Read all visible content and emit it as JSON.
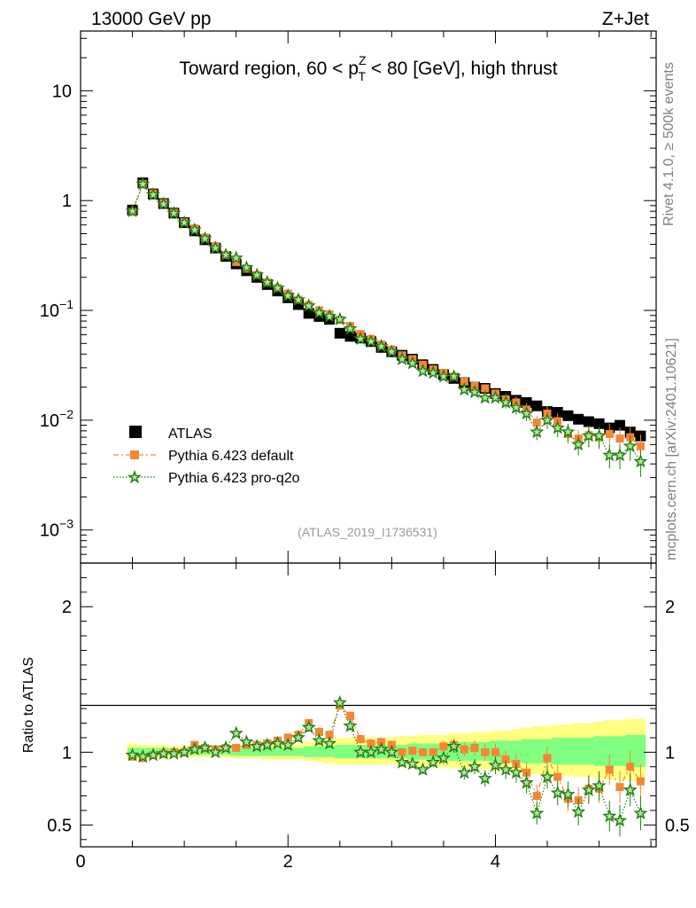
{
  "header": {
    "energy": "13000 GeV pp",
    "process": "Z+Jet"
  },
  "side": {
    "rivet": "Rivet 4.1.0, ≥ 500k events",
    "site": "mcplots.cern.ch [arXiv:2401.10621]"
  },
  "colors": {
    "atlas": "#000000",
    "default": "#f58634",
    "proq2o": "#1e7d12",
    "band_yellow": "#ffff80",
    "band_green": "#80ff80"
  },
  "chart_data": [
    {
      "type": "scatter",
      "title": "Toward region, 60 < p_T^Z < 80 [GeV], high thrust",
      "title_parts": {
        "pre": "Toward region, 60 < p",
        "sup": "Z",
        "sub": "T",
        "post": " < 80 [GeV], high thrust"
      },
      "analysis": "(ATLAS_2019_I1736531)",
      "yscale": "log",
      "ylim": [
        0.0005,
        35
      ],
      "xlim": [
        0,
        5.55
      ],
      "ytick_labels": [
        {
          "value": 10,
          "base": "10",
          "exp": ""
        },
        {
          "value": 1,
          "base": "1",
          "exp": ""
        },
        {
          "value": 0.1,
          "base": "10",
          "exp": "−1"
        },
        {
          "value": 0.01,
          "base": "10",
          "exp": "−2"
        },
        {
          "value": 0.001,
          "base": "10",
          "exp": "−3"
        }
      ],
      "legend": [
        "ATLAS",
        "Pythia 6.423 default",
        "Pythia 6.423 pro-q2o"
      ],
      "x": [
        0.5,
        0.6,
        0.7,
        0.8,
        0.9,
        1.0,
        1.1,
        1.2,
        1.3,
        1.4,
        1.5,
        1.6,
        1.7,
        1.8,
        1.9,
        2.0,
        2.1,
        2.2,
        2.3,
        2.4,
        2.5,
        2.6,
        2.7,
        2.8,
        2.9,
        3.0,
        3.1,
        3.2,
        3.3,
        3.4,
        3.5,
        3.6,
        3.7,
        3.8,
        3.9,
        4.0,
        4.1,
        4.2,
        4.3,
        4.4,
        4.5,
        4.6,
        4.7,
        4.8,
        4.9,
        5.0,
        5.1,
        5.2,
        5.3,
        5.4
      ],
      "series": [
        {
          "name": "ATLAS",
          "values": [
            0.82,
            1.45,
            1.15,
            0.94,
            0.77,
            0.63,
            0.53,
            0.44,
            0.37,
            0.31,
            0.265,
            0.23,
            0.2,
            0.172,
            0.15,
            0.13,
            0.113,
            0.094,
            0.088,
            0.083,
            0.062,
            0.058,
            0.056,
            0.052,
            0.046,
            0.042,
            0.039,
            0.036,
            0.032,
            0.029,
            0.026,
            0.024,
            0.022,
            0.02,
            0.0195,
            0.0175,
            0.0165,
            0.0152,
            0.0145,
            0.0135,
            0.012,
            0.0118,
            0.011,
            0.0102,
            0.0097,
            0.0093,
            0.0085,
            0.009,
            0.0078,
            0.0072
          ]
        },
        {
          "name": "Pythia 6.423 default",
          "values": [
            0.79,
            1.42,
            1.16,
            0.95,
            0.775,
            0.635,
            0.56,
            0.46,
            0.385,
            0.32,
            0.275,
            0.24,
            0.21,
            0.18,
            0.16,
            0.142,
            0.125,
            0.112,
            0.1,
            0.092,
            0.082,
            0.072,
            0.061,
            0.055,
            0.049,
            0.044,
            0.039,
            0.036,
            0.032,
            0.029,
            0.027,
            0.025,
            0.0225,
            0.0205,
            0.0195,
            0.0175,
            0.0155,
            0.0145,
            0.0125,
            0.0095,
            0.0115,
            0.0098,
            0.0075,
            0.0068,
            0.0073,
            0.007,
            0.0075,
            0.0068,
            0.007,
            0.0058
          ]
        },
        {
          "name": "Pythia 6.423 pro-q2o",
          "values": [
            0.8,
            1.41,
            1.13,
            0.93,
            0.765,
            0.63,
            0.54,
            0.45,
            0.37,
            0.32,
            0.3,
            0.245,
            0.21,
            0.18,
            0.16,
            0.136,
            0.125,
            0.11,
            0.095,
            0.088,
            0.083,
            0.068,
            0.055,
            0.052,
            0.047,
            0.042,
            0.036,
            0.033,
            0.028,
            0.027,
            0.025,
            0.025,
            0.019,
            0.018,
            0.016,
            0.016,
            0.0145,
            0.013,
            0.0115,
            0.0078,
            0.01,
            0.0085,
            0.0078,
            0.006,
            0.0072,
            0.0072,
            0.0048,
            0.0048,
            0.0058,
            0.0042
          ]
        }
      ]
    },
    {
      "type": "scatter",
      "ylabel": "Ratio to ATLAS",
      "ylim": [
        0.35,
        2.3
      ],
      "xlim": [
        0,
        5.55
      ],
      "yticks": [
        0.5,
        1,
        2
      ],
      "ytick_labels": [
        "0.5",
        "1",
        "2"
      ],
      "xticks": [
        0,
        2,
        4
      ],
      "xtick_labels": [
        "0",
        "2",
        "4"
      ],
      "x": [
        0.5,
        0.6,
        0.7,
        0.8,
        0.9,
        1.0,
        1.1,
        1.2,
        1.3,
        1.4,
        1.5,
        1.6,
        1.7,
        1.8,
        1.9,
        2.0,
        2.1,
        2.2,
        2.3,
        2.4,
        2.5,
        2.6,
        2.7,
        2.8,
        2.9,
        3.0,
        3.1,
        3.2,
        3.3,
        3.4,
        3.5,
        3.6,
        3.7,
        3.8,
        3.9,
        4.0,
        4.1,
        4.2,
        4.3,
        4.4,
        4.5,
        4.6,
        4.7,
        4.8,
        4.9,
        5.0,
        5.1,
        5.2,
        5.3,
        5.4
      ],
      "band_yellow_half": [
        0.06,
        0.05,
        0.05,
        0.05,
        0.04,
        0.04,
        0.04,
        0.04,
        0.04,
        0.04,
        0.05,
        0.05,
        0.05,
        0.06,
        0.06,
        0.06,
        0.06,
        0.07,
        0.08,
        0.09,
        0.1,
        0.1,
        0.1,
        0.1,
        0.1,
        0.1,
        0.11,
        0.11,
        0.12,
        0.12,
        0.12,
        0.13,
        0.13,
        0.14,
        0.14,
        0.15,
        0.15,
        0.16,
        0.17,
        0.18,
        0.18,
        0.19,
        0.19,
        0.2,
        0.2,
        0.21,
        0.22,
        0.22,
        0.23,
        0.23
      ],
      "band_green_half": [
        0.03,
        0.03,
        0.03,
        0.03,
        0.02,
        0.02,
        0.02,
        0.02,
        0.02,
        0.02,
        0.03,
        0.03,
        0.03,
        0.03,
        0.03,
        0.03,
        0.03,
        0.04,
        0.04,
        0.04,
        0.05,
        0.05,
        0.05,
        0.05,
        0.05,
        0.05,
        0.05,
        0.06,
        0.06,
        0.06,
        0.06,
        0.07,
        0.07,
        0.07,
        0.07,
        0.08,
        0.08,
        0.08,
        0.09,
        0.09,
        0.09,
        0.1,
        0.1,
        0.1,
        0.1,
        0.11,
        0.11,
        0.11,
        0.12,
        0.12
      ],
      "series": [
        {
          "name": "Pythia 6.423 default",
          "values": [
            0.97,
            0.96,
            0.98,
            0.99,
            1.0,
            1.0,
            1.05,
            1.03,
            1.02,
            1.03,
            1.03,
            1.05,
            1.05,
            1.06,
            1.08,
            1.1,
            1.12,
            1.2,
            1.14,
            1.12,
            1.32,
            1.25,
            1.09,
            1.06,
            1.07,
            1.05,
            1.0,
            1.01,
            1.0,
            1.0,
            1.04,
            1.05,
            1.02,
            1.03,
            1.0,
            1.0,
            0.95,
            0.92,
            0.86,
            0.7,
            0.96,
            0.83,
            0.68,
            0.67,
            0.75,
            0.75,
            0.88,
            0.76,
            0.9,
            0.8
          ]
        },
        {
          "name": "Pythia 6.423 pro-q2o",
          "values": [
            0.98,
            0.97,
            0.98,
            0.99,
            0.99,
            1.0,
            1.02,
            1.03,
            1.0,
            1.03,
            1.13,
            1.07,
            1.04,
            1.05,
            1.06,
            1.05,
            1.1,
            1.17,
            1.08,
            1.06,
            1.34,
            1.18,
            1.0,
            1.0,
            1.02,
            1.0,
            0.93,
            0.92,
            0.88,
            0.93,
            0.96,
            1.04,
            0.86,
            0.9,
            0.82,
            0.91,
            0.88,
            0.86,
            0.79,
            0.58,
            0.83,
            0.72,
            0.71,
            0.59,
            0.74,
            0.77,
            0.56,
            0.53,
            0.74,
            0.58
          ]
        }
      ]
    }
  ]
}
